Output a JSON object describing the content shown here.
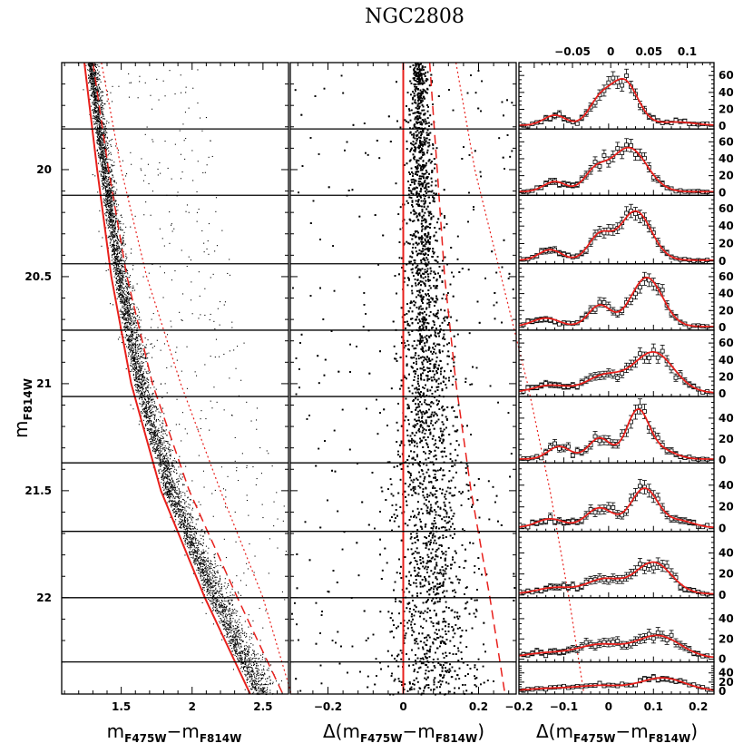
{
  "title": "NGC2808",
  "chart_data": [
    {
      "panel": "cmd",
      "type": "scatter",
      "xlabel": {
        "main": "m",
        "sub1": "F475W",
        "dash": "−m",
        "sub2": "F814W"
      },
      "ylabel": {
        "main": "m",
        "sub": "F814W"
      },
      "xlim": [
        1.08,
        2.68
      ],
      "ylim": [
        22.45,
        19.5
      ],
      "xticks": [
        1.5,
        2,
        2.5
      ],
      "xtick_labels": [
        "1.5",
        "2",
        "2.5"
      ],
      "yticks": [
        20,
        20.5,
        21,
        21.5,
        22
      ],
      "ytick_labels": [
        "20",
        "20.5",
        "21",
        "21.5",
        "22"
      ],
      "bin_edges_mag": [
        19.5,
        19.81,
        20.12,
        20.44,
        20.75,
        21.06,
        21.37,
        21.69,
        22.0,
        22.3,
        22.45
      ],
      "fiducial": {
        "mag": [
          19.5,
          20.0,
          20.5,
          21.0,
          21.5,
          22.0,
          22.45
        ],
        "color": [
          1.24,
          1.33,
          1.43,
          1.57,
          1.78,
          2.09,
          2.41
        ]
      },
      "fiducial_dashed": {
        "mag": [
          19.5,
          20.0,
          20.5,
          21.0,
          21.5,
          22.0,
          22.45
        ],
        "color": [
          1.3,
          1.41,
          1.54,
          1.72,
          1.98,
          2.32,
          2.64
        ]
      },
      "fiducial_dotted": {
        "mag": [
          19.5,
          20.0,
          20.5,
          21.0,
          21.5,
          22.0,
          22.45
        ],
        "color": [
          1.36,
          1.5,
          1.68,
          1.92,
          2.2,
          2.5,
          2.7
        ]
      }
    },
    {
      "panel": "verticalized",
      "type": "scatter",
      "xlabel": {
        "main": "Δ(m",
        "sub1": "F475W",
        "dash": "−m",
        "sub2": "F814W",
        "close": ")"
      },
      "xlim": [
        -0.3,
        0.3
      ],
      "ylim": [
        22.45,
        19.5
      ],
      "xticks": [
        -0.2,
        0,
        0.2
      ],
      "xtick_labels": [
        "−0.2",
        "0",
        "0.2"
      ],
      "solid_line_x": 0.0,
      "dashed_line": {
        "mag": [
          19.5,
          20.0,
          20.5,
          21.0,
          21.5,
          22.0,
          22.45
        ],
        "dx": [
          0.07,
          0.09,
          0.11,
          0.14,
          0.18,
          0.23,
          0.27
        ]
      },
      "dotted_line": {
        "mag": [
          19.5,
          20.0,
          20.5,
          21.0,
          21.5,
          22.0,
          22.45
        ],
        "dx": [
          0.14,
          0.19,
          0.26,
          0.33,
          0.39,
          0.44,
          0.48
        ]
      }
    },
    {
      "panel": "histograms",
      "type": "line",
      "xlabel": {
        "main": "Δ(m",
        "sub1": "F475W",
        "dash": "−m",
        "sub2": "F814W",
        "close": ")"
      },
      "xlim": [
        -0.2,
        0.235
      ],
      "xticks": [
        -0.2,
        -0.1,
        0,
        0.1,
        0.2
      ],
      "xtick_labels": [
        "−0.2",
        "−0.1",
        "0",
        "0.1",
        "0.2"
      ],
      "top_xlim": [
        -0.12,
        0.135
      ],
      "top_xticks": [
        -0.05,
        0,
        0.05,
        0.1
      ],
      "top_xtick_labels": [
        "−0.05",
        "0",
        "0.05",
        "0.1"
      ],
      "rows": [
        {
          "ymax": 72,
          "yticks": [
            0,
            20,
            40,
            60
          ],
          "comps": [
            [
              12,
              -0.12,
              0.025
            ],
            [
              28,
              -0.02,
              0.025
            ],
            [
              52,
              0.035,
              0.03
            ],
            [
              4,
              0.15,
              0.04
            ]
          ]
        },
        {
          "ymax": 72,
          "yticks": [
            0,
            20,
            40,
            60
          ],
          "comps": [
            [
              12,
              -0.12,
              0.025
            ],
            [
              22,
              -0.03,
              0.025
            ],
            [
              52,
              0.045,
              0.04
            ]
          ]
        },
        {
          "ymax": 72,
          "yticks": [
            0,
            20,
            40,
            60
          ],
          "comps": [
            [
              12,
              -0.13,
              0.025
            ],
            [
              28,
              -0.02,
              0.025
            ],
            [
              56,
              0.06,
              0.035
            ]
          ]
        },
        {
          "ymax": 72,
          "yticks": [
            0,
            20,
            40,
            60
          ],
          "comps": [
            [
              10,
              -0.14,
              0.03
            ],
            [
              25,
              -0.02,
              0.025
            ],
            [
              58,
              0.085,
              0.035
            ]
          ]
        },
        {
          "ymax": 72,
          "yticks": [
            0,
            20,
            40,
            60
          ],
          "comps": [
            [
              9,
              -0.13,
              0.04
            ],
            [
              20,
              -0.01,
              0.04
            ],
            [
              48,
              0.1,
              0.045
            ]
          ]
        },
        {
          "ymax": 58,
          "yticks": [
            0,
            20,
            40
          ],
          "comps": [
            [
              12,
              -0.11,
              0.025
            ],
            [
              20,
              -0.02,
              0.025
            ],
            [
              46,
              0.065,
              0.025
            ],
            [
              8,
              0.12,
              0.03
            ]
          ]
        },
        {
          "ymax": 58,
          "yticks": [
            0,
            20,
            40
          ],
          "comps": [
            [
              8,
              -0.13,
              0.03
            ],
            [
              18,
              -0.02,
              0.03
            ],
            [
              36,
              0.08,
              0.03
            ],
            [
              6,
              0.16,
              0.03
            ]
          ]
        },
        {
          "ymax": 58,
          "yticks": [
            0,
            20,
            40
          ],
          "comps": [
            [
              6,
              -0.12,
              0.04
            ],
            [
              14,
              -0.01,
              0.04
            ],
            [
              30,
              0.1,
              0.04
            ]
          ]
        },
        {
          "ymax": 58,
          "yticks": [
            0,
            20,
            40
          ],
          "comps": [
            [
              5,
              -0.14,
              0.05
            ],
            [
              13,
              -0.02,
              0.05
            ],
            [
              22,
              0.11,
              0.05
            ]
          ]
        },
        {
          "ymax": 58,
          "yticks": [
            0,
            20,
            40
          ],
          "comps": [
            [
              5,
              -0.13,
              0.05
            ],
            [
              11,
              -0.02,
              0.05
            ],
            [
              28,
              0.12,
              0.05
            ]
          ]
        }
      ]
    }
  ]
}
